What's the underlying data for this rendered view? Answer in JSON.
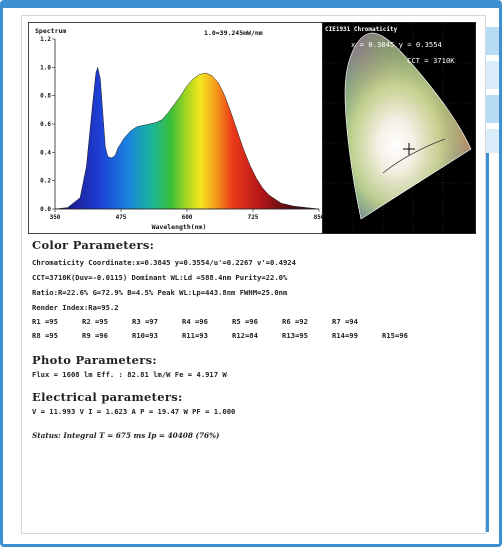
{
  "spectrum": {
    "title": "Spectrum",
    "range_label": "1.0=39.245mW/nm",
    "xlabel": "Wavelength(nm)",
    "y_ticks": [
      "1.2",
      "1.0",
      "0.8",
      "0.6",
      "0.4",
      "0.2",
      "0.0"
    ],
    "x_ticks": [
      "350",
      "475",
      "600",
      "725",
      "850"
    ]
  },
  "chart_data": {
    "type": "area",
    "title": "Spectrum",
    "xlabel": "Wavelength(nm)",
    "ylabel": "",
    "xlim": [
      380,
      800
    ],
    "ylim": [
      0,
      1.2
    ],
    "x": [
      380,
      400,
      420,
      430,
      440,
      445,
      448,
      452,
      456,
      460,
      464,
      470,
      476,
      480,
      490,
      500,
      510,
      520,
      530,
      540,
      550,
      560,
      570,
      580,
      590,
      600,
      610,
      620,
      630,
      640,
      650,
      660,
      670,
      680,
      690,
      700,
      710,
      720,
      730,
      740,
      760,
      780,
      800
    ],
    "values": [
      0.0,
      0.01,
      0.08,
      0.3,
      0.75,
      0.96,
      1.0,
      0.92,
      0.68,
      0.44,
      0.37,
      0.36,
      0.38,
      0.43,
      0.5,
      0.55,
      0.58,
      0.59,
      0.6,
      0.61,
      0.63,
      0.68,
      0.74,
      0.8,
      0.87,
      0.92,
      0.95,
      0.96,
      0.94,
      0.89,
      0.8,
      0.68,
      0.55,
      0.42,
      0.31,
      0.22,
      0.15,
      0.1,
      0.07,
      0.04,
      0.02,
      0.01,
      0.0
    ]
  },
  "cie": {
    "title": "CIE1931 Chromaticity",
    "coords": "x = 0.3845  y = 0.3554",
    "cct": "CCT = 3710K"
  },
  "color": {
    "heading": "Color Parameters:",
    "line1": "Chromaticity Coordinate:x=0.3845  y=0.3554/u'=0.2267 v'=0.4924",
    "line2": "CCT=3710K(Duv=-0.0115) Dominant WL:Ld =588.4nm Purity=22.0%",
    "line3": "Ratio:R=22.6% G=72.9% B=4.5%  Peak WL:Lp=443.8nm  FWHM=25.0nm",
    "line4": "Render Index:Ra=95.2",
    "r_row1": [
      "R1 =95",
      "R2 =95",
      "R3 =97",
      "R4 =96",
      "R5 =96",
      "R6 =92",
      "R7 =94"
    ],
    "r_row2": [
      "R8 =95",
      "R9 =96",
      "R10=93",
      "R11=93",
      "R12=84",
      "R13=95",
      "R14=99",
      "R15=96"
    ]
  },
  "photo": {
    "heading": "Photo Parameters:",
    "line1": "Flux  = 1608 lm   Eff. : 82.81 lm/W  Fe   = 4.917 W"
  },
  "electrical": {
    "heading": "Electrical parameters:",
    "line1": "V = 11.993 V     I = 1.623 A     P = 19.47 W PF = 1.000"
  },
  "status": {
    "text": "Status:  Integral T = 675 ms  Ip = 40408 (76%)"
  },
  "colors": {
    "frame_blue": "#3d8fd1",
    "cie_background": "#000000"
  }
}
